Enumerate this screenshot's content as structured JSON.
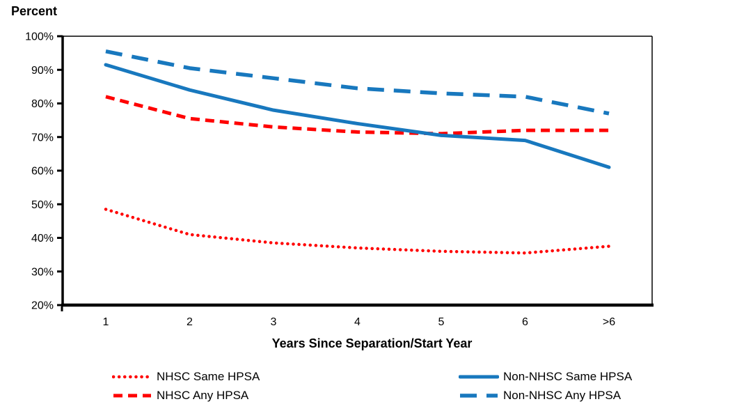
{
  "chart_data": {
    "type": "line",
    "title": "Percent",
    "ylabel": "Percent",
    "xlabel": "Years Since Separation/Start Year",
    "categories": [
      "1",
      "2",
      "3",
      "4",
      "5",
      "6",
      ">6"
    ],
    "y_ticks": [
      "20%",
      "30%",
      "40%",
      "50%",
      "60%",
      "70%",
      "80%",
      "90%",
      "100%"
    ],
    "ylim": [
      20,
      100
    ],
    "grid": false,
    "legend_position": "bottom",
    "series": [
      {
        "name": "NHSC Same HPSA",
        "color": "#FF0000",
        "style": "dotted",
        "values": [
          48.5,
          41,
          38.5,
          37,
          36,
          35.5,
          37.5
        ]
      },
      {
        "name": "NHSC Any HPSA",
        "color": "#FF0000",
        "style": "dashed",
        "values": [
          82,
          75.5,
          73,
          71.5,
          71,
          72,
          72
        ]
      },
      {
        "name": "Non-NHSC Same HPSA",
        "color": "#1878BE",
        "style": "solid",
        "values": [
          91.5,
          84,
          78,
          74,
          70.5,
          69,
          61
        ]
      },
      {
        "name": "Non-NHSC Any HPSA",
        "color": "#1878BE",
        "style": "long-dashed",
        "values": [
          95.5,
          90.5,
          87.5,
          84.5,
          83,
          82,
          77
        ]
      }
    ],
    "colors": {
      "red": "#FF0000",
      "blue": "#1878BE",
      "axis": "#000000"
    }
  }
}
